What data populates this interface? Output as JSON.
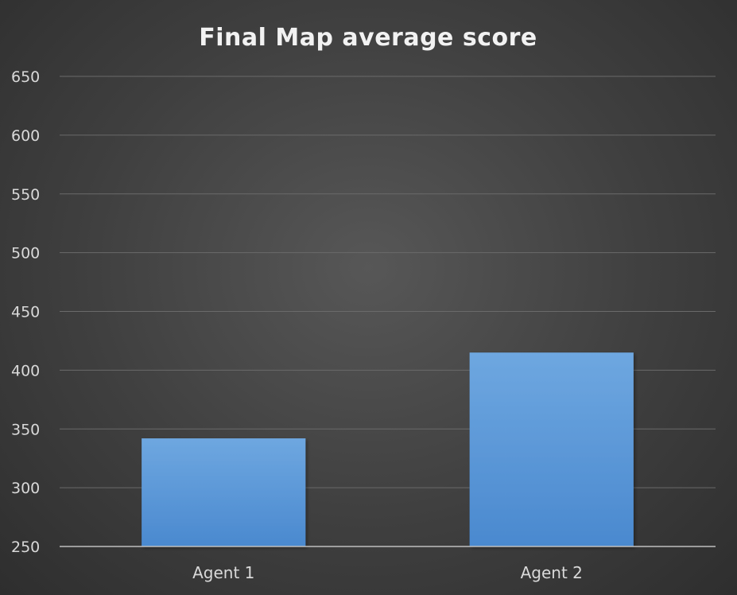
{
  "chart_data": {
    "type": "bar",
    "title": "Final Map average score",
    "categories": [
      "Agent 1",
      "Agent 2"
    ],
    "values": [
      342,
      415
    ],
    "xlabel": "",
    "ylabel": "",
    "ylim": [
      250,
      650
    ],
    "yticks": [
      250,
      300,
      350,
      400,
      450,
      500,
      550,
      600,
      650
    ],
    "grid": true,
    "legend": "none",
    "colors": {
      "bar_top": "#6ea7e0",
      "bar_bottom": "#4a89cf",
      "background": "#454545"
    }
  }
}
